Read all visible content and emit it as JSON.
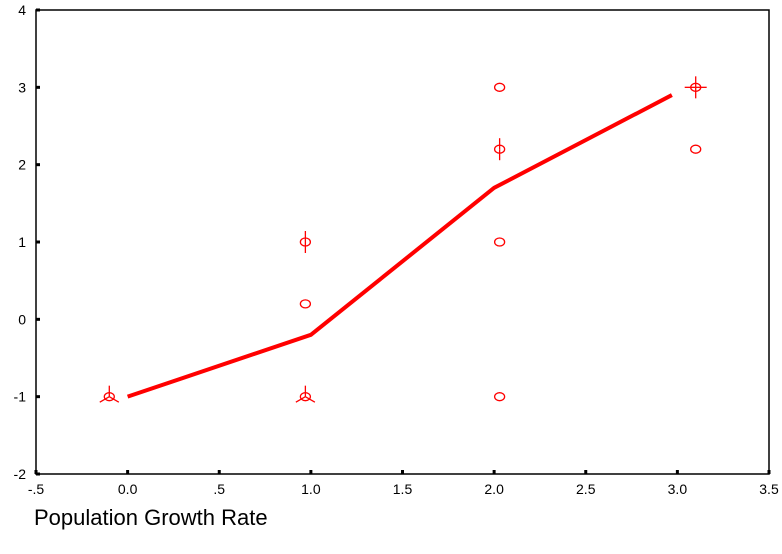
{
  "chart_data": {
    "type": "scatter",
    "title": "",
    "xlabel": "Population Growth Rate",
    "ylabel": "",
    "xlim": [
      -0.5,
      3.5
    ],
    "ylim": [
      -2,
      4
    ],
    "x_ticks": [
      "-.5",
      "0.0",
      ".5",
      "1.0",
      "1.5",
      "2.0",
      "2.5",
      "3.0",
      "3.5"
    ],
    "x_tick_values": [
      -0.5,
      0,
      0.5,
      1.0,
      1.5,
      2.0,
      2.5,
      3.0,
      3.5
    ],
    "y_ticks": [
      "-2",
      "-1",
      "0",
      "1",
      "2",
      "3",
      "4"
    ],
    "y_tick_values": [
      -2,
      -1,
      0,
      1,
      2,
      3,
      4
    ],
    "grid": false,
    "color": "#ff0000",
    "sunflower_points": [
      {
        "x": -0.1,
        "y": -1,
        "count": 3
      },
      {
        "x": 0.97,
        "y": -1,
        "count": 3
      },
      {
        "x": 0.97,
        "y": 0.2,
        "count": 1
      },
      {
        "x": 0.97,
        "y": 1,
        "count": 2
      },
      {
        "x": 2.03,
        "y": -1,
        "count": 1
      },
      {
        "x": 2.03,
        "y": 1,
        "count": 1
      },
      {
        "x": 2.03,
        "y": 2.2,
        "count": 2
      },
      {
        "x": 2.03,
        "y": 3,
        "count": 1
      },
      {
        "x": 3.1,
        "y": 2.2,
        "count": 1
      },
      {
        "x": 3.1,
        "y": 3,
        "count": 4
      }
    ],
    "fit_line": {
      "x": [
        0.0,
        1.0,
        2.0,
        2.97
      ],
      "y": [
        -1.0,
        -0.2,
        1.7,
        2.9
      ]
    }
  }
}
